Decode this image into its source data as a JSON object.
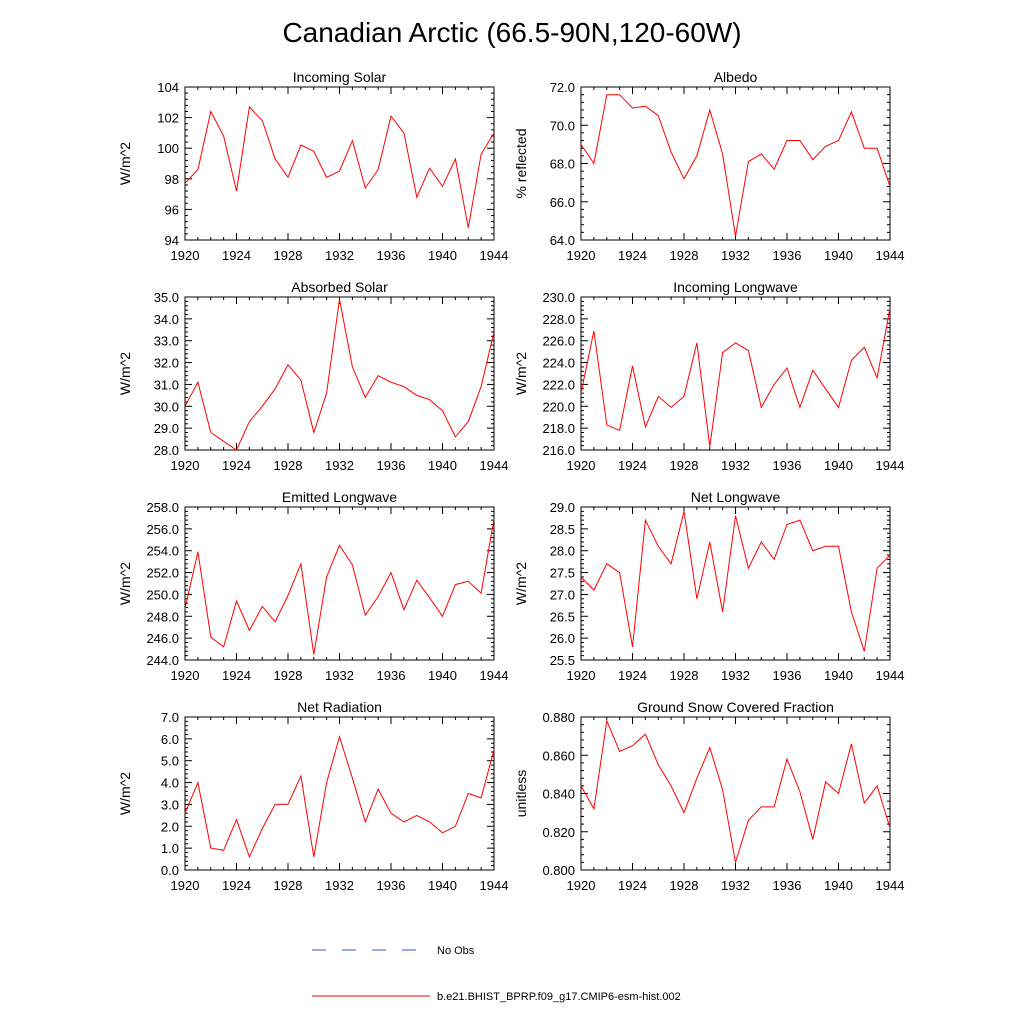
{
  "figure": {
    "title": "Canadian Arctic (66.5-90N,120-60W)"
  },
  "legend": [
    {
      "label": "No Obs",
      "style": "dashed",
      "color": "#3b4fd8"
    },
    {
      "label": "b.e21.BHIST_BPRP.f09_g17.CMIP6-esm-hist.002",
      "style": "solid",
      "color": "#ff0000"
    }
  ],
  "series_color": "#ff0000",
  "chart_data": [
    {
      "type": "line",
      "title": "Incoming Solar",
      "ylabel": "W/m^2",
      "xlabel": "",
      "xlim": [
        1920,
        1944
      ],
      "ylim": [
        94,
        104
      ],
      "xticks": [
        1920,
        1924,
        1928,
        1932,
        1936,
        1940,
        1944
      ],
      "yticks": [
        94,
        96,
        98,
        100,
        102,
        104
      ],
      "ytick_decimals": 0,
      "x": [
        1920,
        1921,
        1922,
        1923,
        1924,
        1925,
        1926,
        1927,
        1928,
        1929,
        1930,
        1931,
        1932,
        1933,
        1934,
        1935,
        1936,
        1937,
        1938,
        1939,
        1940,
        1941,
        1942,
        1943,
        1944
      ],
      "values": [
        97.7,
        98.6,
        102.4,
        100.8,
        97.2,
        102.7,
        101.8,
        99.3,
        98.1,
        100.2,
        99.8,
        98.1,
        98.5,
        100.5,
        97.4,
        98.6,
        102.1,
        101.0,
        96.8,
        98.7,
        97.5,
        99.3,
        94.8,
        99.6,
        101.0
      ]
    },
    {
      "type": "line",
      "title": "Albedo",
      "ylabel": "% reflected",
      "xlabel": "",
      "xlim": [
        1920,
        1944
      ],
      "ylim": [
        64,
        72
      ],
      "xticks": [
        1920,
        1924,
        1928,
        1932,
        1936,
        1940,
        1944
      ],
      "yticks": [
        64,
        66,
        68,
        70,
        72
      ],
      "ytick_decimals": 1,
      "x": [
        1920,
        1921,
        1922,
        1923,
        1924,
        1925,
        1926,
        1927,
        1928,
        1929,
        1930,
        1931,
        1932,
        1933,
        1934,
        1935,
        1936,
        1937,
        1938,
        1939,
        1940,
        1941,
        1942,
        1943,
        1944
      ],
      "values": [
        69.0,
        68.0,
        71.6,
        71.6,
        70.9,
        71.0,
        70.5,
        68.6,
        67.2,
        68.4,
        70.8,
        68.5,
        64.2,
        68.1,
        68.5,
        67.7,
        69.2,
        69.2,
        68.2,
        68.9,
        69.2,
        70.7,
        68.8,
        68.8,
        66.8
      ]
    },
    {
      "type": "line",
      "title": "Absorbed Solar",
      "ylabel": "W/m^2",
      "xlabel": "",
      "xlim": [
        1920,
        1944
      ],
      "ylim": [
        28,
        35
      ],
      "xticks": [
        1920,
        1924,
        1928,
        1932,
        1936,
        1940,
        1944
      ],
      "yticks": [
        28,
        29,
        30,
        31,
        32,
        33,
        34,
        35
      ],
      "ytick_decimals": 1,
      "x": [
        1920,
        1921,
        1922,
        1923,
        1924,
        1925,
        1926,
        1927,
        1928,
        1929,
        1930,
        1931,
        1932,
        1933,
        1934,
        1935,
        1936,
        1937,
        1938,
        1939,
        1940,
        1941,
        1942,
        1943,
        1944
      ],
      "values": [
        30.0,
        31.1,
        28.8,
        28.4,
        28.0,
        29.3,
        30.0,
        30.8,
        31.9,
        31.2,
        28.8,
        30.6,
        34.9,
        31.8,
        30.4,
        31.4,
        31.1,
        30.9,
        30.5,
        30.3,
        29.8,
        28.6,
        29.3,
        30.9,
        33.4
      ]
    },
    {
      "type": "line",
      "title": "Incoming Longwave",
      "ylabel": "W/m^2",
      "xlabel": "",
      "xlim": [
        1920,
        1944
      ],
      "ylim": [
        216,
        230
      ],
      "xticks": [
        1920,
        1924,
        1928,
        1932,
        1936,
        1940,
        1944
      ],
      "yticks": [
        216,
        218,
        220,
        222,
        224,
        226,
        228,
        230
      ],
      "ytick_decimals": 1,
      "x": [
        1920,
        1921,
        1922,
        1923,
        1924,
        1925,
        1926,
        1927,
        1928,
        1929,
        1930,
        1931,
        1932,
        1933,
        1934,
        1935,
        1936,
        1937,
        1938,
        1939,
        1940,
        1941,
        1942,
        1943,
        1944
      ],
      "values": [
        221.2,
        226.9,
        218.3,
        217.8,
        223.7,
        218.1,
        220.9,
        219.9,
        220.9,
        225.8,
        216.3,
        224.9,
        225.8,
        225.1,
        219.9,
        222.0,
        223.5,
        219.9,
        223.3,
        221.6,
        219.9,
        224.2,
        225.4,
        222.6,
        229.0
      ]
    },
    {
      "type": "line",
      "title": "Emitted Longwave",
      "ylabel": "W/m^2",
      "xlabel": "",
      "xlim": [
        1920,
        1944
      ],
      "ylim": [
        244,
        258
      ],
      "xticks": [
        1920,
        1924,
        1928,
        1932,
        1936,
        1940,
        1944
      ],
      "yticks": [
        244,
        246,
        248,
        250,
        252,
        254,
        256,
        258
      ],
      "ytick_decimals": 1,
      "x": [
        1920,
        1921,
        1922,
        1923,
        1924,
        1925,
        1926,
        1927,
        1928,
        1929,
        1930,
        1931,
        1932,
        1933,
        1934,
        1935,
        1936,
        1937,
        1938,
        1939,
        1940,
        1941,
        1942,
        1943,
        1944
      ],
      "values": [
        248.7,
        253.9,
        246.1,
        245.2,
        249.4,
        246.7,
        248.9,
        247.5,
        249.9,
        252.8,
        244.5,
        251.6,
        254.5,
        252.7,
        248.1,
        249.8,
        252.0,
        248.6,
        251.3,
        249.7,
        248.0,
        250.9,
        251.2,
        250.1,
        256.9
      ]
    },
    {
      "type": "line",
      "title": "Net Longwave",
      "ylabel": "W/m^2",
      "xlabel": "",
      "xlim": [
        1920,
        1944
      ],
      "ylim": [
        25.5,
        29.0
      ],
      "xticks": [
        1920,
        1924,
        1928,
        1932,
        1936,
        1940,
        1944
      ],
      "yticks": [
        25.5,
        26.0,
        26.5,
        27.0,
        27.5,
        28.0,
        28.5,
        29.0
      ],
      "ytick_decimals": 1,
      "x": [
        1920,
        1921,
        1922,
        1923,
        1924,
        1925,
        1926,
        1927,
        1928,
        1929,
        1930,
        1931,
        1932,
        1933,
        1934,
        1935,
        1936,
        1937,
        1938,
        1939,
        1940,
        1941,
        1942,
        1943,
        1944
      ],
      "values": [
        27.4,
        27.1,
        27.7,
        27.5,
        25.8,
        28.7,
        28.1,
        27.7,
        28.9,
        26.9,
        28.2,
        26.6,
        28.8,
        27.6,
        28.2,
        27.8,
        28.6,
        28.7,
        28.0,
        28.1,
        28.1,
        26.6,
        25.7,
        27.6,
        27.9
      ]
    },
    {
      "type": "line",
      "title": "Net Radiation",
      "ylabel": "W/m^2",
      "xlabel": "",
      "xlim": [
        1920,
        1944
      ],
      "ylim": [
        0,
        7
      ],
      "xticks": [
        1920,
        1924,
        1928,
        1932,
        1936,
        1940,
        1944
      ],
      "yticks": [
        0,
        1,
        2,
        3,
        4,
        5,
        6,
        7
      ],
      "ytick_decimals": 1,
      "x": [
        1920,
        1921,
        1922,
        1923,
        1924,
        1925,
        1926,
        1927,
        1928,
        1929,
        1930,
        1931,
        1932,
        1933,
        1934,
        1935,
        1936,
        1937,
        1938,
        1939,
        1940,
        1941,
        1942,
        1943,
        1944
      ],
      "values": [
        2.6,
        4.0,
        1.0,
        0.9,
        2.3,
        0.6,
        1.9,
        3.0,
        3.0,
        4.3,
        0.6,
        4.0,
        6.1,
        4.2,
        2.2,
        3.7,
        2.6,
        2.2,
        2.5,
        2.2,
        1.7,
        2.0,
        3.5,
        3.3,
        5.5
      ]
    },
    {
      "type": "line",
      "title": "Ground Snow Covered Fraction",
      "ylabel": "unitless",
      "xlabel": "",
      "xlim": [
        1920,
        1944
      ],
      "ylim": [
        0.8,
        0.88
      ],
      "xticks": [
        1920,
        1924,
        1928,
        1932,
        1936,
        1940,
        1944
      ],
      "yticks": [
        0.8,
        0.82,
        0.84,
        0.86,
        0.88
      ],
      "ytick_decimals": 3,
      "x": [
        1920,
        1921,
        1922,
        1923,
        1924,
        1925,
        1926,
        1927,
        1928,
        1929,
        1930,
        1931,
        1932,
        1933,
        1934,
        1935,
        1936,
        1937,
        1938,
        1939,
        1940,
        1941,
        1942,
        1943,
        1944
      ],
      "values": [
        0.844,
        0.832,
        0.878,
        0.862,
        0.865,
        0.871,
        0.855,
        0.844,
        0.83,
        0.848,
        0.864,
        0.842,
        0.804,
        0.826,
        0.833,
        0.833,
        0.858,
        0.841,
        0.816,
        0.846,
        0.84,
        0.866,
        0.835,
        0.844,
        0.822
      ]
    }
  ]
}
